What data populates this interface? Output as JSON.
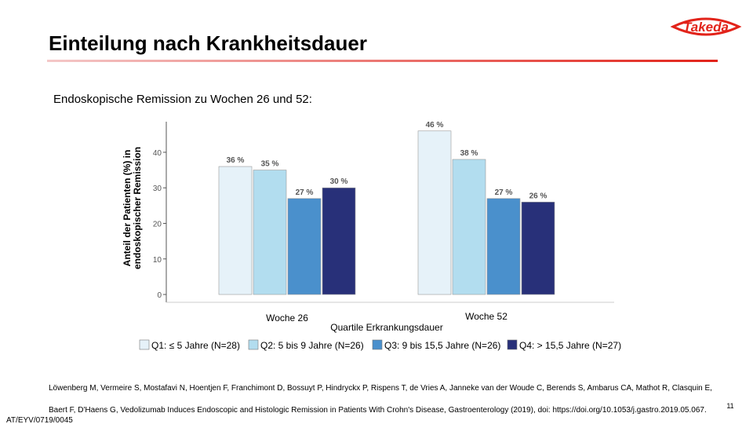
{
  "slide": {
    "title": "Einteilung nach Krankheitsdauer",
    "subtitle": "Endoskopische Remission zu Wochen 26 und 52:",
    "logo": "Takeda",
    "page_number": "11",
    "code": "AT/EYV/0719/0045",
    "reference": [
      "Löwenberg M, Vermeire S, Mostafavi N, Hoentjen F, Franchimont D, Bossuyt P, Hindryckx P, Rispens T, de Vries A, Janneke van der Woude C, Berends S, Ambarus CA, Mathot R, Clasquin E,",
      "Baert F, D'Haens G, Vedolizumab Induces Endoscopic and Histologic Remission in Patients With Crohn's Disease, Gastroenterology (2019), doi: https://doi.org/10.1053/j.gastro.2019.05.067."
    ]
  },
  "chart_data": {
    "type": "bar",
    "y_label": [
      "Anteil der Patienten (%) in",
      "endoskopischer Remission"
    ],
    "x_label": "Quartile Erkrankungsdauer",
    "categories": [
      "Woche 26",
      "Woche 52"
    ],
    "series": [
      {
        "name": "Q1: ≤ 5 Jahre (N=28)",
        "color": "#e6f2f9",
        "values": [
          36,
          46
        ],
        "value_labels": [
          "36 %",
          "46 %"
        ]
      },
      {
        "name": "Q2: 5 bis 9 Jahre (N=26)",
        "color": "#b2ddef",
        "values": [
          35,
          38
        ],
        "value_labels": [
          "35 %",
          "38 %"
        ]
      },
      {
        "name": "Q3: 9 bis 15,5 Jahre (N=26)",
        "color": "#4a90cc",
        "values": [
          27,
          27
        ],
        "value_labels": [
          "27 %",
          "27 %"
        ]
      },
      {
        "name": "Q4: > 15,5 Jahre (N=27)",
        "color": "#283079",
        "values": [
          30,
          26
        ],
        "value_labels": [
          "30 %",
          "26 %"
        ]
      }
    ],
    "ylim": [
      -2.2,
      48.6
    ],
    "yticks": [
      0,
      10,
      20,
      30,
      40
    ]
  }
}
